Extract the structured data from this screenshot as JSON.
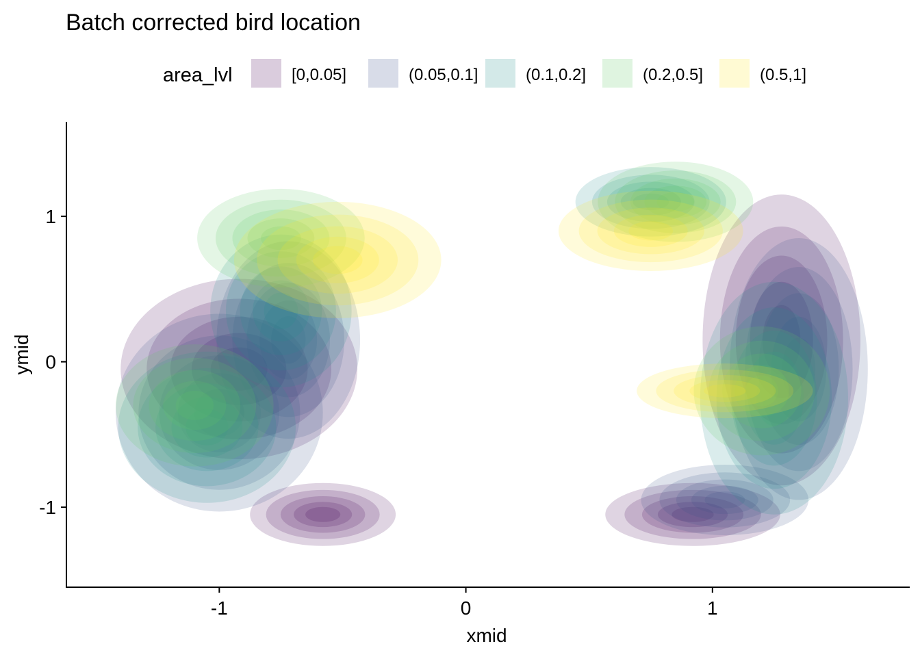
{
  "chart_data": {
    "type": "density-contour",
    "title": "Batch corrected bird location",
    "xlabel": "xmid",
    "ylabel": "ymid",
    "xlim": [
      -1.62,
      1.8
    ],
    "ylim": [
      -1.55,
      1.65
    ],
    "x_ticks": [
      {
        "value": -1,
        "label": "-1"
      },
      {
        "value": 0,
        "label": "0"
      },
      {
        "value": 1,
        "label": "1"
      }
    ],
    "y_ticks": [
      {
        "value": -1,
        "label": "-1"
      },
      {
        "value": 0,
        "label": "0"
      },
      {
        "value": 1,
        "label": "1"
      }
    ],
    "legend": {
      "title": "area_lvl",
      "position": "top"
    },
    "series": [
      {
        "name": "[0,0.05]",
        "color": "#440154",
        "clusters": [
          {
            "cx": -0.92,
            "cy": -0.05,
            "rx": 0.48,
            "ry": 0.62,
            "weight": 1.0
          },
          {
            "cx": -0.58,
            "cy": -1.05,
            "rx": 0.3,
            "ry": 0.22,
            "weight": 0.9
          },
          {
            "cx": 1.28,
            "cy": 0.15,
            "rx": 0.32,
            "ry": 1.0,
            "weight": 1.0
          },
          {
            "cx": 0.92,
            "cy": -1.05,
            "rx": 0.36,
            "ry": 0.22,
            "weight": 0.9
          }
        ]
      },
      {
        "name": "(0.05,0.1]",
        "color": "#3b528b",
        "clusters": [
          {
            "cx": -1.0,
            "cy": -0.35,
            "rx": 0.42,
            "ry": 0.68,
            "weight": 1.0
          },
          {
            "cx": -0.72,
            "cy": 0.15,
            "rx": 0.3,
            "ry": 0.7,
            "weight": 0.8
          },
          {
            "cx": 1.35,
            "cy": -0.05,
            "rx": 0.28,
            "ry": 0.9,
            "weight": 1.0
          },
          {
            "cx": 1.05,
            "cy": -0.95,
            "rx": 0.35,
            "ry": 0.25,
            "weight": 0.8
          }
        ]
      },
      {
        "name": "(0.1,0.2]",
        "color": "#21908d",
        "clusters": [
          {
            "cx": -1.05,
            "cy": -0.45,
            "rx": 0.36,
            "ry": 0.52,
            "weight": 1.0
          },
          {
            "cx": -0.75,
            "cy": 0.35,
            "rx": 0.3,
            "ry": 0.55,
            "weight": 0.7
          },
          {
            "cx": 1.25,
            "cy": -0.25,
            "rx": 0.3,
            "ry": 0.8,
            "weight": 1.0
          },
          {
            "cx": 0.75,
            "cy": 1.1,
            "rx": 0.32,
            "ry": 0.25,
            "weight": 0.7
          }
        ]
      },
      {
        "name": "(0.2,0.5]",
        "color": "#5dc963",
        "clusters": [
          {
            "cx": -1.1,
            "cy": -0.3,
            "rx": 0.32,
            "ry": 0.42,
            "weight": 1.0
          },
          {
            "cx": -0.75,
            "cy": 0.85,
            "rx": 0.35,
            "ry": 0.35,
            "weight": 0.8
          },
          {
            "cx": 0.85,
            "cy": 1.1,
            "rx": 0.32,
            "ry": 0.28,
            "weight": 0.9
          },
          {
            "cx": 1.2,
            "cy": -0.2,
            "rx": 0.28,
            "ry": 0.45,
            "weight": 0.9
          }
        ]
      },
      {
        "name": "(0.5,1]",
        "color": "#fde725",
        "clusters": [
          {
            "cx": -0.52,
            "cy": 0.7,
            "rx": 0.42,
            "ry": 0.4,
            "weight": 1.0
          },
          {
            "cx": 0.75,
            "cy": 0.9,
            "rx": 0.38,
            "ry": 0.28,
            "weight": 0.9
          },
          {
            "cx": 1.05,
            "cy": -0.2,
            "rx": 0.38,
            "ry": 0.2,
            "weight": 0.6
          }
        ]
      }
    ]
  }
}
